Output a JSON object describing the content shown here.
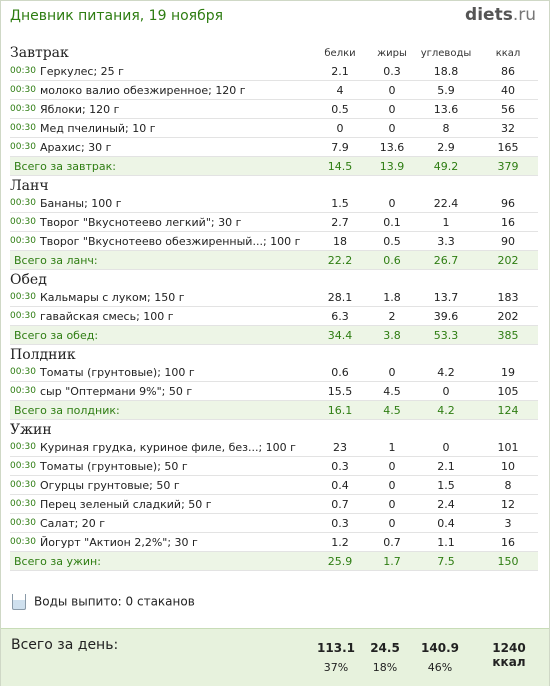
{
  "header": {
    "title": "Дневник питания, 19 ноября",
    "logo_main": "diets",
    "logo_tld": ".ru"
  },
  "columns": {
    "protein": "белки",
    "fat": "жиры",
    "carbs": "углеводы",
    "kcal": "ккал"
  },
  "meals": [
    {
      "name": "Завтрак",
      "items": [
        {
          "time": "00:30",
          "food": "Геркулес; 25 г",
          "protein": "2.1",
          "fat": "0.3",
          "carbs": "18.8",
          "kcal": "86"
        },
        {
          "time": "00:30",
          "food": "молоко валио обезжиренное; 120 г",
          "protein": "4",
          "fat": "0",
          "carbs": "5.9",
          "kcal": "40"
        },
        {
          "time": "00:30",
          "food": "Яблоки; 120 г",
          "protein": "0.5",
          "fat": "0",
          "carbs": "13.6",
          "kcal": "56"
        },
        {
          "time": "00:30",
          "food": "Мед пчелиный; 10 г",
          "protein": "0",
          "fat": "0",
          "carbs": "8",
          "kcal": "32"
        },
        {
          "time": "00:30",
          "food": "Арахис; 30 г",
          "protein": "7.9",
          "fat": "13.6",
          "carbs": "2.9",
          "kcal": "165"
        }
      ],
      "total": {
        "label": "Всего за завтрак:",
        "protein": "14.5",
        "fat": "13.9",
        "carbs": "49.2",
        "kcal": "379"
      }
    },
    {
      "name": "Ланч",
      "items": [
        {
          "time": "00:30",
          "food": "Бананы; 100 г",
          "protein": "1.5",
          "fat": "0",
          "carbs": "22.4",
          "kcal": "96"
        },
        {
          "time": "00:30",
          "food": "Творог \"Вкуснотеево легкий\"; 30 г",
          "protein": "2.7",
          "fat": "0.1",
          "carbs": "1",
          "kcal": "16"
        },
        {
          "time": "00:30",
          "food": "Творог \"Вкуснотеево обезжиренный...; 100 г",
          "protein": "18",
          "fat": "0.5",
          "carbs": "3.3",
          "kcal": "90"
        }
      ],
      "total": {
        "label": "Всего за ланч:",
        "protein": "22.2",
        "fat": "0.6",
        "carbs": "26.7",
        "kcal": "202"
      }
    },
    {
      "name": "Обед",
      "items": [
        {
          "time": "00:30",
          "food": "Кальмары с луком; 150 г",
          "protein": "28.1",
          "fat": "1.8",
          "carbs": "13.7",
          "kcal": "183"
        },
        {
          "time": "00:30",
          "food": "гавайская смесь; 100 г",
          "protein": "6.3",
          "fat": "2",
          "carbs": "39.6",
          "kcal": "202"
        }
      ],
      "total": {
        "label": "Всего за обед:",
        "protein": "34.4",
        "fat": "3.8",
        "carbs": "53.3",
        "kcal": "385"
      }
    },
    {
      "name": "Полдник",
      "items": [
        {
          "time": "00:30",
          "food": "Томаты (грунтовые); 100 г",
          "protein": "0.6",
          "fat": "0",
          "carbs": "4.2",
          "kcal": "19"
        },
        {
          "time": "00:30",
          "food": "сыр \"Оптермани 9%\"; 50 г",
          "protein": "15.5",
          "fat": "4.5",
          "carbs": "0",
          "kcal": "105"
        }
      ],
      "total": {
        "label": "Всего за полдник:",
        "protein": "16.1",
        "fat": "4.5",
        "carbs": "4.2",
        "kcal": "124"
      }
    },
    {
      "name": "Ужин",
      "items": [
        {
          "time": "00:30",
          "food": "Куриная грудка, куриное филе, без...; 100 г",
          "protein": "23",
          "fat": "1",
          "carbs": "0",
          "kcal": "101"
        },
        {
          "time": "00:30",
          "food": "Томаты (грунтовые); 50 г",
          "protein": "0.3",
          "fat": "0",
          "carbs": "2.1",
          "kcal": "10"
        },
        {
          "time": "00:30",
          "food": "Огурцы грунтовые; 50 г",
          "protein": "0.4",
          "fat": "0",
          "carbs": "1.5",
          "kcal": "8"
        },
        {
          "time": "00:30",
          "food": "Перец зеленый сладкий; 50 г",
          "protein": "0.7",
          "fat": "0",
          "carbs": "2.4",
          "kcal": "12"
        },
        {
          "time": "00:30",
          "food": "Салат; 20 г",
          "protein": "0.3",
          "fat": "0",
          "carbs": "0.4",
          "kcal": "3"
        },
        {
          "time": "00:30",
          "food": "Йогурт \"Актион 2,2%\"; 30 г",
          "protein": "1.2",
          "fat": "0.7",
          "carbs": "1.1",
          "kcal": "16"
        }
      ],
      "total": {
        "label": "Всего за ужин:",
        "protein": "25.9",
        "fat": "1.7",
        "carbs": "7.5",
        "kcal": "150"
      }
    }
  ],
  "water": {
    "text": "Воды выпито: 0 стаканов",
    "icon": "glass-icon"
  },
  "day_total": {
    "label": "Всего за день:",
    "protein": "113.1",
    "fat": "24.5",
    "carbs": "140.9",
    "kcal": "1240 ккал",
    "protein_pct": "37%",
    "fat_pct": "18%",
    "carbs_pct": "46%"
  },
  "colors": {
    "accent_green": "#2e7d12",
    "total_row_bg": "#edf5e6",
    "day_total_bg": "#e7f2dd"
  }
}
